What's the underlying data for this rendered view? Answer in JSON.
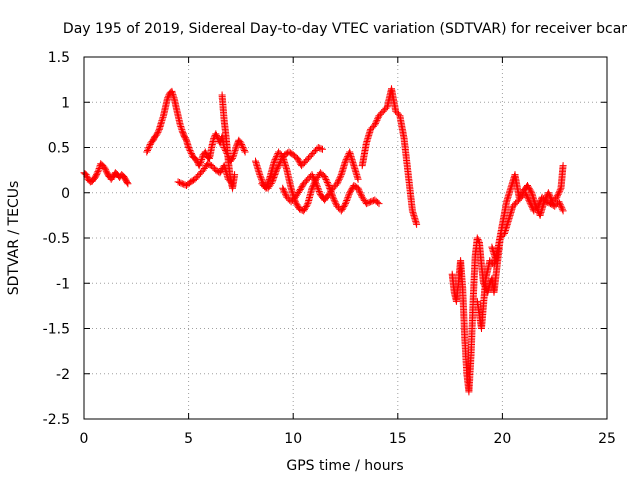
{
  "chart_data": {
    "type": "scatter",
    "title": "Day 195 of 2019, Sidereal Day-to-day VTEC variation (SDTVAR) for receiver bcar",
    "xlabel": "GPS time / hours",
    "ylabel": "SDTVAR / TECUs",
    "xlim": [
      0,
      25
    ],
    "ylim": [
      -2.5,
      1.5
    ],
    "xticks": [
      0,
      5,
      10,
      15,
      20,
      25
    ],
    "xtick_labels": [
      "0",
      "5",
      "10",
      "15",
      "20",
      "25"
    ],
    "yticks": [
      -2.5,
      -2,
      -1.5,
      -1,
      -0.5,
      0,
      0.5,
      1,
      1.5
    ],
    "ytick_labels": [
      "-2.5",
      "-2",
      "-1.5",
      "-1",
      "-0.5",
      "0",
      "0.5",
      "1",
      "1.5"
    ],
    "grid": true,
    "marker": "+",
    "color": "#ff0000",
    "series": [
      {
        "name": "SDTVAR",
        "segments": [
          {
            "x": [
              0.0,
              0.1,
              0.2,
              0.3,
              0.4,
              0.5,
              0.6,
              0.7,
              0.8,
              0.9,
              1.0,
              1.1,
              1.2,
              1.3,
              1.4,
              1.5,
              1.6,
              1.7,
              1.8,
              1.9,
              2.0,
              2.1
            ],
            "y": [
              0.22,
              0.2,
              0.15,
              0.12,
              0.13,
              0.16,
              0.2,
              0.25,
              0.32,
              0.3,
              0.27,
              0.22,
              0.18,
              0.15,
              0.18,
              0.22,
              0.2,
              0.17,
              0.2,
              0.18,
              0.14,
              0.1
            ]
          },
          {
            "x": [
              3.0,
              3.1,
              3.2,
              3.3,
              3.4,
              3.5,
              3.6,
              3.7,
              3.8,
              3.9,
              4.0,
              4.1,
              4.2,
              4.3,
              4.4,
              4.5,
              4.6,
              4.7,
              4.8,
              4.9,
              5.0,
              5.1,
              5.2,
              5.3,
              5.4,
              5.5,
              5.6,
              5.7,
              5.8,
              5.9,
              6.0,
              6.1,
              6.2,
              6.3,
              6.4,
              6.5,
              6.6,
              6.7,
              6.8,
              6.9,
              7.0,
              7.1,
              7.2,
              7.3,
              7.4,
              7.5,
              7.6,
              7.7
            ],
            "y": [
              0.45,
              0.5,
              0.55,
              0.58,
              0.62,
              0.65,
              0.7,
              0.78,
              0.85,
              0.95,
              1.05,
              1.1,
              1.12,
              1.05,
              0.95,
              0.85,
              0.75,
              0.68,
              0.62,
              0.58,
              0.5,
              0.45,
              0.4,
              0.38,
              0.35,
              0.3,
              0.35,
              0.42,
              0.45,
              0.4,
              0.38,
              0.5,
              0.6,
              0.65,
              0.6,
              0.55,
              0.62,
              0.5,
              0.45,
              0.4,
              0.35,
              0.38,
              0.45,
              0.52,
              0.58,
              0.55,
              0.5,
              0.45
            ]
          },
          {
            "x": [
              4.5,
              4.7,
              4.9,
              5.1,
              5.3,
              5.5,
              5.7,
              5.9,
              6.1,
              6.3,
              6.5,
              6.7,
              6.9,
              7.1
            ],
            "y": [
              0.12,
              0.1,
              0.08,
              0.12,
              0.15,
              0.2,
              0.25,
              0.32,
              0.3,
              0.25,
              0.22,
              0.3,
              0.15,
              0.1
            ]
          },
          {
            "x": [
              6.6,
              6.7,
              6.8,
              6.9,
              7.0,
              7.1,
              7.2
            ],
            "y": [
              1.08,
              0.8,
              0.6,
              0.35,
              0.15,
              0.05,
              0.2
            ]
          },
          {
            "x": [
              8.2,
              8.4,
              8.6,
              8.8,
              9.0,
              9.2,
              9.4,
              9.6,
              9.8,
              10.0,
              10.2,
              10.4,
              10.6,
              10.8,
              11.0,
              11.2,
              11.4
            ],
            "y": [
              0.35,
              0.2,
              0.08,
              0.05,
              0.12,
              0.25,
              0.35,
              0.42,
              0.45,
              0.42,
              0.38,
              0.3,
              0.35,
              0.4,
              0.45,
              0.5,
              0.48
            ]
          },
          {
            "x": [
              8.5,
              8.7,
              8.9,
              9.1,
              9.3,
              9.5,
              9.7,
              9.9,
              10.1,
              10.3,
              10.5,
              10.7,
              10.9,
              11.1,
              11.3,
              11.5,
              11.7,
              11.9,
              12.1,
              12.3,
              12.5,
              12.7,
              12.9,
              13.1,
              13.3,
              13.5,
              13.7,
              13.9,
              14.1
            ],
            "y": [
              0.1,
              0.05,
              0.18,
              0.35,
              0.45,
              0.4,
              0.25,
              0.05,
              -0.1,
              -0.18,
              -0.2,
              -0.12,
              0.05,
              0.15,
              0.22,
              0.18,
              0.08,
              -0.05,
              -0.15,
              -0.2,
              -0.12,
              0.0,
              0.08,
              0.05,
              -0.05,
              -0.12,
              -0.1,
              -0.08,
              -0.12
            ]
          },
          {
            "x": [
              9.5,
              9.7,
              9.9,
              10.1,
              10.3,
              10.5,
              10.7,
              10.9,
              11.1,
              11.3,
              11.5,
              11.7,
              11.9,
              12.1,
              12.3,
              12.5,
              12.7,
              12.9,
              13.1
            ],
            "y": [
              0.05,
              -0.05,
              -0.1,
              -0.05,
              0.02,
              0.1,
              0.15,
              0.2,
              0.1,
              -0.02,
              -0.08,
              -0.02,
              0.05,
              0.1,
              0.2,
              0.35,
              0.45,
              0.3,
              0.15
            ]
          },
          {
            "x": [
              13.3,
              13.5,
              13.7,
              13.9,
              14.1,
              14.3,
              14.5,
              14.7,
              14.9,
              15.1,
              15.3,
              15.5,
              15.7,
              15.9
            ],
            "y": [
              0.3,
              0.55,
              0.7,
              0.75,
              0.85,
              0.9,
              0.95,
              1.15,
              0.9,
              0.85,
              0.6,
              0.2,
              -0.2,
              -0.35
            ]
          },
          {
            "x": [
              17.6,
              17.7,
              17.8,
              17.9,
              18.0,
              18.1,
              18.2,
              18.3,
              18.4,
              18.5,
              18.6,
              18.7,
              18.8,
              18.9,
              19.0,
              19.1,
              19.2,
              19.3,
              19.4,
              19.5,
              19.6,
              19.7,
              19.8,
              19.9
            ],
            "y": [
              -0.9,
              -1.1,
              -1.2,
              -1.0,
              -0.75,
              -1.05,
              -1.6,
              -2.0,
              -2.2,
              -1.8,
              -1.2,
              -0.7,
              -0.5,
              -0.55,
              -0.8,
              -1.0,
              -1.05,
              -1.1,
              -1.0,
              -0.95,
              -1.1,
              -0.9,
              -0.7,
              -0.5
            ]
          },
          {
            "x": [
              18.8,
              19.0,
              19.2,
              19.4,
              19.6,
              19.8,
              20.0,
              20.2,
              20.4,
              20.6,
              20.8,
              21.0,
              21.2,
              21.4,
              21.6,
              21.8,
              22.0,
              22.2,
              22.4,
              22.6,
              22.8,
              22.9
            ],
            "y": [
              -1.2,
              -1.5,
              -0.95,
              -0.75,
              -0.8,
              -0.6,
              -0.35,
              -0.1,
              0.05,
              0.2,
              -0.05,
              0.02,
              0.08,
              0.0,
              -0.15,
              -0.25,
              -0.1,
              0.0,
              -0.1,
              -0.05,
              0.05,
              0.3
            ]
          },
          {
            "x": [
              19.5,
              19.7,
              19.9,
              20.1,
              20.3,
              20.5,
              20.7,
              20.9,
              21.1,
              21.3,
              21.5,
              21.7,
              21.9,
              22.1,
              22.3,
              22.5,
              22.7,
              22.9
            ],
            "y": [
              -0.6,
              -0.75,
              -0.5,
              -0.45,
              -0.3,
              -0.15,
              -0.1,
              -0.05,
              0.0,
              -0.1,
              -0.2,
              -0.15,
              -0.05,
              -0.1,
              -0.12,
              -0.15,
              -0.1,
              -0.2
            ]
          }
        ]
      }
    ]
  }
}
